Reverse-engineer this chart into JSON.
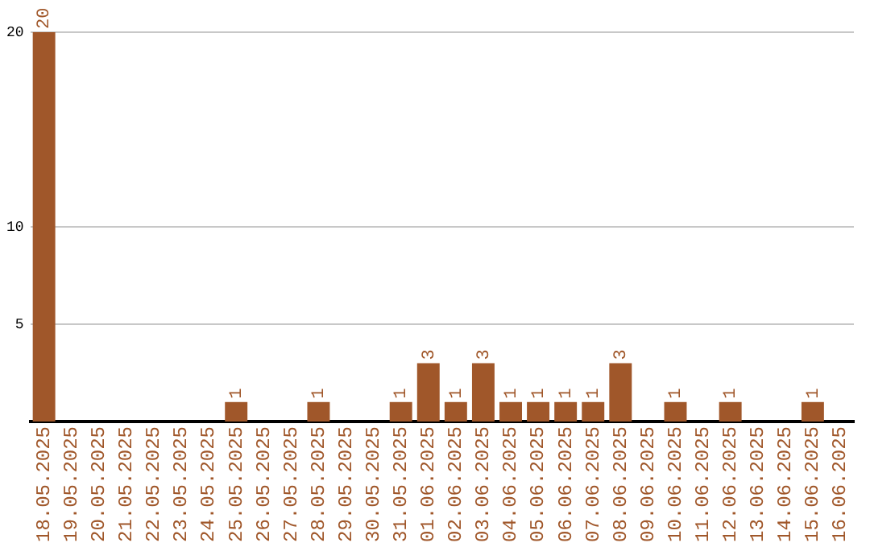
{
  "chart_data": {
    "type": "bar",
    "categories": [
      "18.05.2025",
      "19.05.2025",
      "20.05.2025",
      "21.05.2025",
      "22.05.2025",
      "23.05.2025",
      "24.05.2025",
      "25.05.2025",
      "26.05.2025",
      "27.05.2025",
      "28.05.2025",
      "29.05.2025",
      "30.05.2025",
      "31.05.2025",
      "01.06.2025",
      "02.06.2025",
      "03.06.2025",
      "04.06.2025",
      "05.06.2025",
      "06.06.2025",
      "07.06.2025",
      "08.06.2025",
      "09.06.2025",
      "10.06.2025",
      "11.06.2025",
      "12.06.2025",
      "13.06.2025",
      "14.06.2025",
      "15.06.2025",
      "16.06.2025"
    ],
    "values": [
      20,
      0,
      0,
      0,
      0,
      0,
      0,
      1,
      0,
      0,
      1,
      0,
      0,
      1,
      3,
      1,
      3,
      1,
      1,
      1,
      1,
      3,
      0,
      1,
      0,
      1,
      0,
      0,
      1,
      0
    ],
    "value_labels": [
      "20",
      null,
      null,
      null,
      null,
      null,
      null,
      "1",
      null,
      null,
      "1",
      null,
      null,
      "1",
      "3",
      "1",
      "3",
      "1",
      "1",
      "1",
      "1",
      "3",
      null,
      "1",
      null,
      "1",
      null,
      null,
      "1",
      null
    ],
    "color": "#a0572a",
    "ylim": [
      0,
      20
    ],
    "yticks": [
      5,
      10,
      20
    ],
    "grid": "y",
    "legend": false
  }
}
